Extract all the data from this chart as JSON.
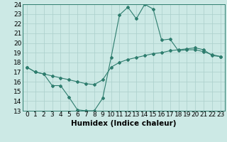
{
  "xlabel": "Humidex (Indice chaleur)",
  "x_ticks": [
    0,
    1,
    2,
    3,
    4,
    5,
    6,
    7,
    8,
    9,
    10,
    11,
    12,
    13,
    14,
    15,
    16,
    17,
    18,
    19,
    20,
    21,
    22,
    23
  ],
  "ylim": [
    13,
    24
  ],
  "yticks": [
    13,
    14,
    15,
    16,
    17,
    18,
    19,
    20,
    21,
    22,
    23,
    24
  ],
  "line1_x": [
    0,
    1,
    2,
    3,
    4,
    5,
    6,
    7,
    8,
    9,
    10,
    11,
    12,
    13,
    14,
    15,
    16,
    17,
    18,
    19,
    20,
    21,
    22,
    23
  ],
  "line1_y": [
    17.5,
    17.0,
    16.8,
    15.6,
    15.6,
    14.4,
    13.1,
    13.0,
    13.0,
    14.3,
    18.5,
    22.9,
    23.7,
    22.5,
    24.0,
    23.5,
    20.3,
    20.4,
    19.2,
    19.3,
    19.3,
    19.1,
    18.8,
    18.6
  ],
  "line2_x": [
    0,
    1,
    2,
    3,
    4,
    5,
    6,
    7,
    8,
    9,
    10,
    11,
    12,
    13,
    14,
    15,
    16,
    17,
    18,
    19,
    20,
    21,
    22,
    23
  ],
  "line2_y": [
    17.5,
    17.0,
    16.8,
    16.6,
    16.4,
    16.2,
    16.0,
    15.8,
    15.7,
    16.2,
    17.5,
    18.0,
    18.3,
    18.5,
    18.7,
    18.9,
    19.0,
    19.2,
    19.3,
    19.4,
    19.5,
    19.3,
    18.7,
    18.6
  ],
  "line_color": "#2e7d6e",
  "bg_color": "#cce9e5",
  "grid_color": "#aacfcb",
  "tick_label_fontsize": 6.5,
  "xlabel_fontsize": 7.5,
  "fig_width": 3.2,
  "fig_height": 2.0,
  "dpi": 100
}
